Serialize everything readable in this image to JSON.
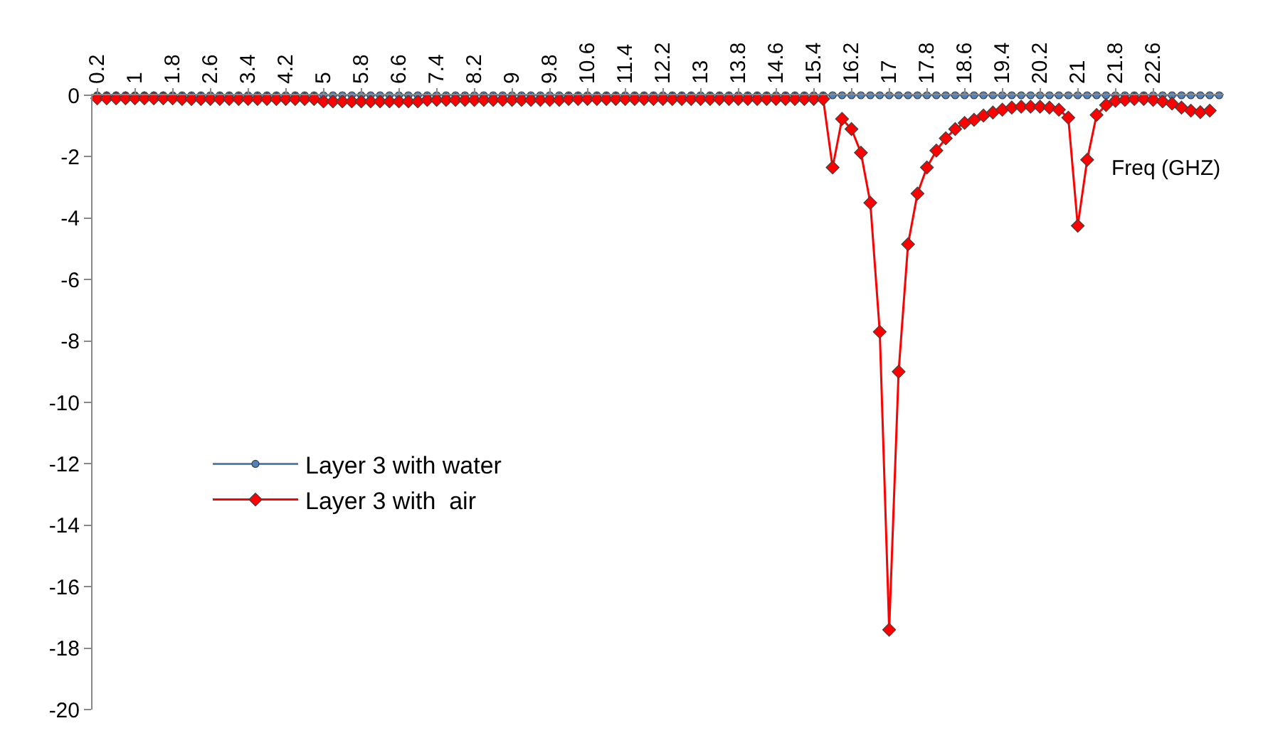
{
  "chart_data": {
    "type": "line",
    "xlabel": "Freq (GHZ)",
    "x": [
      0.2,
      0.4,
      0.6,
      0.8,
      1,
      1.2,
      1.4,
      1.6,
      1.8,
      2,
      2.2,
      2.4,
      2.6,
      2.8,
      3,
      3.2,
      3.4,
      3.6,
      3.8,
      4,
      4.2,
      4.4,
      4.6,
      4.8,
      5,
      5.2,
      5.4,
      5.6,
      5.8,
      6,
      6.2,
      6.4,
      6.6,
      6.8,
      7,
      7.2,
      7.4,
      7.6,
      7.8,
      8,
      8.2,
      8.4,
      8.6,
      8.8,
      9,
      9.2,
      9.4,
      9.6,
      9.8,
      10,
      10.2,
      10.4,
      10.6,
      10.8,
      11,
      11.2,
      11.4,
      11.6,
      11.8,
      12,
      12.2,
      12.4,
      12.6,
      12.8,
      13,
      13.2,
      13.4,
      13.6,
      13.8,
      14,
      14.2,
      14.4,
      14.6,
      14.8,
      15,
      15.2,
      15.4,
      15.6,
      15.8,
      16,
      16.2,
      16.4,
      16.6,
      16.8,
      17,
      17.2,
      17.4,
      17.6,
      17.8,
      18,
      18.2,
      18.4,
      18.6,
      18.8,
      19,
      19.2,
      19.4,
      19.6,
      19.8,
      20,
      20.2,
      20.4,
      20.6,
      20.8,
      21,
      21.2,
      21.4,
      21.6,
      21.8,
      22,
      22.2,
      22.4,
      22.6,
      22.8,
      23,
      23.2,
      23.4,
      23.6,
      23.8,
      24
    ],
    "series": [
      {
        "name": "Layer 3 with water",
        "color": "#4f81bd",
        "marker": "circle",
        "values": [
          0,
          0,
          0,
          0,
          0,
          0,
          0,
          0,
          0,
          0,
          0,
          0,
          0,
          0,
          0,
          0,
          0,
          0,
          0,
          0,
          0,
          0,
          0,
          0,
          0,
          0,
          0,
          0,
          0,
          0,
          0,
          0,
          0,
          0,
          0,
          0,
          0,
          0,
          0,
          0,
          0,
          0,
          0,
          0,
          0,
          0,
          0,
          0,
          0,
          0,
          0,
          0,
          0,
          0,
          0,
          0,
          0,
          0,
          0,
          0,
          0,
          0,
          0,
          0,
          0,
          0,
          0,
          0,
          0,
          0,
          0,
          0,
          0,
          0,
          0,
          0,
          0,
          0,
          0,
          0,
          0,
          0,
          0,
          0,
          0,
          0,
          0,
          0,
          0,
          0,
          0,
          0,
          0,
          0,
          0,
          0,
          0,
          0,
          0,
          0,
          0,
          0,
          0,
          0,
          0,
          0,
          0,
          0,
          0,
          0,
          0,
          0,
          0,
          0,
          0,
          0,
          0,
          0,
          0,
          0
        ]
      },
      {
        "name": "Layer 3 with  air",
        "color": "#ff0000",
        "marker": "diamond",
        "values": [
          -0.1,
          -0.1,
          -0.1,
          -0.1,
          -0.1,
          -0.1,
          -0.1,
          -0.1,
          -0.1,
          -0.12,
          -0.12,
          -0.12,
          -0.12,
          -0.12,
          -0.12,
          -0.12,
          -0.12,
          -0.12,
          -0.12,
          -0.12,
          -0.12,
          -0.12,
          -0.12,
          -0.12,
          -0.2,
          -0.2,
          -0.2,
          -0.2,
          -0.2,
          -0.2,
          -0.2,
          -0.2,
          -0.2,
          -0.2,
          -0.2,
          -0.15,
          -0.15,
          -0.15,
          -0.15,
          -0.15,
          -0.15,
          -0.15,
          -0.15,
          -0.15,
          -0.15,
          -0.15,
          -0.15,
          -0.15,
          -0.15,
          -0.15,
          -0.12,
          -0.12,
          -0.12,
          -0.12,
          -0.12,
          -0.12,
          -0.12,
          -0.12,
          -0.12,
          -0.12,
          -0.12,
          -0.12,
          -0.12,
          -0.12,
          -0.12,
          -0.12,
          -0.12,
          -0.12,
          -0.12,
          -0.12,
          -0.12,
          -0.12,
          -0.12,
          -0.12,
          -0.12,
          -0.12,
          -0.12,
          -0.12,
          -2.35,
          -0.77,
          -1.1,
          -1.87,
          -3.5,
          -7.7,
          -17.4,
          -9.0,
          -4.85,
          -3.2,
          -2.35,
          -1.8,
          -1.4,
          -1.1,
          -0.9,
          -0.8,
          -0.66,
          -0.56,
          -0.47,
          -0.4,
          -0.37,
          -0.37,
          -0.37,
          -0.4,
          -0.47,
          -0.73,
          -4.25,
          -2.1,
          -0.64,
          -0.32,
          -0.18,
          -0.15,
          -0.12,
          -0.12,
          -0.15,
          -0.2,
          -0.27,
          -0.4,
          -0.5,
          -0.55,
          -0.5,
          null
        ]
      }
    ],
    "xlim": [
      0.1,
      24.1
    ],
    "xticks": [
      0.2,
      1,
      1.8,
      2.6,
      3.4,
      4.2,
      5,
      5.8,
      6.6,
      7.4,
      8.2,
      9,
      9.8,
      10.6,
      11.4,
      12.2,
      13,
      13.8,
      14.6,
      15.4,
      16.2,
      17,
      17.8,
      18.6,
      19.4,
      20.2,
      21,
      21.8,
      22.6
    ],
    "ylim": [
      -20,
      0
    ],
    "yticks": [
      -20,
      -18,
      -16,
      -14,
      -12,
      -10,
      -8,
      -6,
      -4,
      -2,
      0
    ],
    "legend": "left",
    "line_style": "solid"
  }
}
